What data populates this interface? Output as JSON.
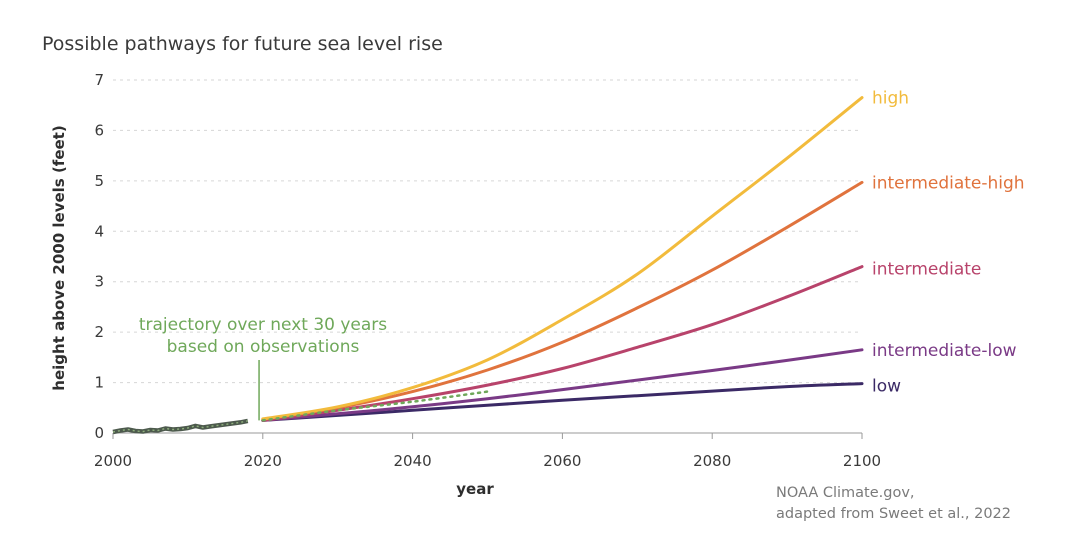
{
  "chart_data": {
    "type": "line",
    "title": "Possible pathways for future sea level rise",
    "xlabel": "year",
    "ylabel": "height above 2000 levels (feet)",
    "xlim": [
      2000,
      2100
    ],
    "ylim": [
      0,
      7
    ],
    "xticks": [
      2000,
      2020,
      2040,
      2060,
      2080,
      2100
    ],
    "yticks": [
      0,
      1,
      2,
      3,
      4,
      5,
      6,
      7
    ],
    "grid": "horizontal-dashed",
    "observed": {
      "color": "#4d5a4d",
      "x": [
        2000,
        2001,
        2002,
        2003,
        2004,
        2005,
        2006,
        2007,
        2008,
        2009,
        2010,
        2011,
        2012,
        2013,
        2014,
        2015,
        2016,
        2017,
        2018
      ],
      "y": [
        0.02,
        0.05,
        0.07,
        0.04,
        0.03,
        0.06,
        0.05,
        0.09,
        0.07,
        0.08,
        0.1,
        0.14,
        0.11,
        0.13,
        0.15,
        0.17,
        0.19,
        0.21,
        0.24
      ]
    },
    "trajectory": {
      "color": "#6fa85a",
      "x": [
        2020,
        2030,
        2040,
        2050
      ],
      "y": [
        0.25,
        0.45,
        0.62,
        0.82
      ]
    },
    "annotation": {
      "lines": [
        "trajectory over next 30 years",
        "based on observations"
      ],
      "x": 2019.5
    },
    "series": [
      {
        "name": "low",
        "color": "#3b2a66",
        "x": [
          2020,
          2030,
          2040,
          2050,
          2060,
          2070,
          2080,
          2090,
          2100
        ],
        "y": [
          0.25,
          0.35,
          0.45,
          0.55,
          0.65,
          0.74,
          0.83,
          0.92,
          0.98
        ]
      },
      {
        "name": "intermediate-low",
        "color": "#7a3a86",
        "x": [
          2020,
          2030,
          2040,
          2050,
          2060,
          2070,
          2080,
          2090,
          2100
        ],
        "y": [
          0.25,
          0.38,
          0.52,
          0.68,
          0.86,
          1.05,
          1.24,
          1.44,
          1.65
        ]
      },
      {
        "name": "intermediate",
        "color": "#b8436b",
        "x": [
          2020,
          2030,
          2040,
          2050,
          2060,
          2070,
          2080,
          2090,
          2100
        ],
        "y": [
          0.25,
          0.45,
          0.68,
          0.95,
          1.28,
          1.7,
          2.15,
          2.7,
          3.3
        ]
      },
      {
        "name": "intermediate-high",
        "color": "#e0733d",
        "x": [
          2020,
          2030,
          2040,
          2050,
          2060,
          2070,
          2080,
          2090,
          2100
        ],
        "y": [
          0.27,
          0.5,
          0.82,
          1.25,
          1.8,
          2.48,
          3.23,
          4.08,
          4.97
        ]
      },
      {
        "name": "high",
        "color": "#f2bb3c",
        "x": [
          2020,
          2030,
          2040,
          2050,
          2060,
          2070,
          2080,
          2090,
          2100
        ],
        "y": [
          0.28,
          0.52,
          0.9,
          1.45,
          2.25,
          3.15,
          4.3,
          5.45,
          6.65
        ]
      }
    ]
  },
  "credit": [
    "NOAA Climate.gov,",
    "adapted from Sweet et al., 2022"
  ]
}
